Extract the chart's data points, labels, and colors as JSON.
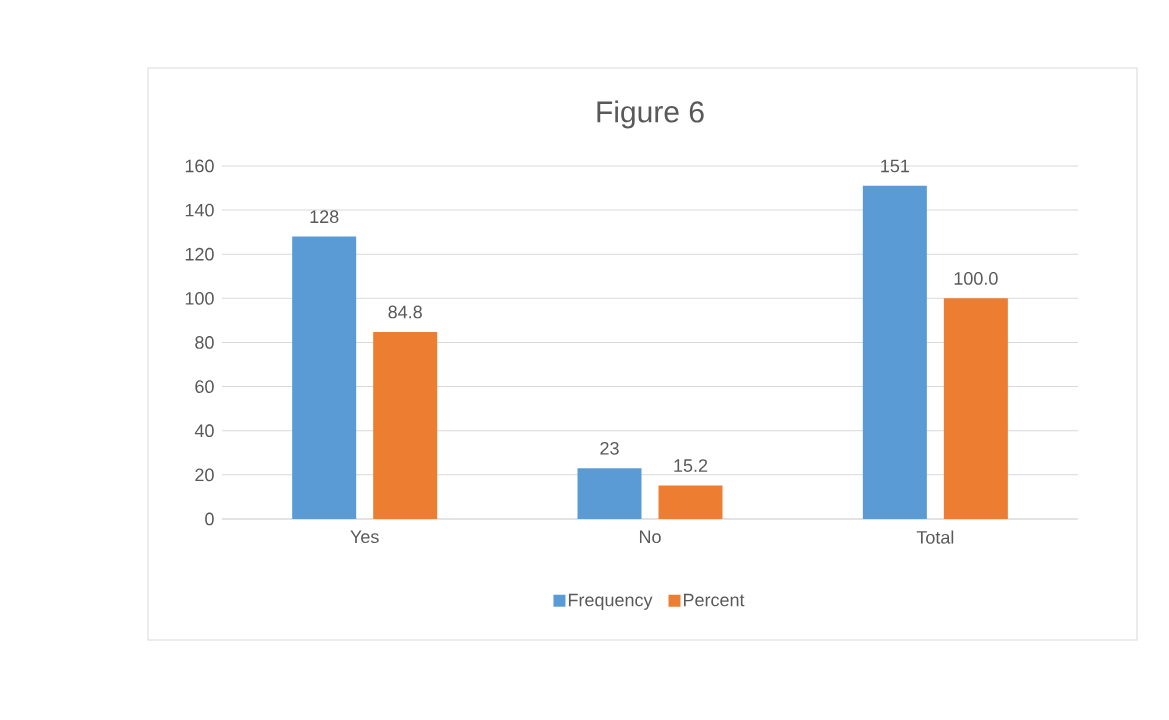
{
  "chart_data": {
    "type": "bar",
    "title": "Figure 6",
    "categories": [
      "Yes",
      "No",
      "Total"
    ],
    "series": [
      {
        "name": "Frequency",
        "color": "#5b9bd5",
        "values": [
          128,
          23,
          151
        ],
        "value_labels": [
          "128",
          "23",
          "151"
        ]
      },
      {
        "name": "Percent",
        "color": "#ed7d31",
        "values": [
          84.8,
          15.2,
          100.0
        ],
        "value_labels": [
          "84.8",
          "15.2",
          "100.0"
        ]
      }
    ],
    "ylim": [
      0,
      160
    ],
    "yticks": [
      0,
      20,
      40,
      60,
      80,
      100,
      120,
      140,
      160
    ],
    "grid": "y",
    "legend": "bottom"
  }
}
